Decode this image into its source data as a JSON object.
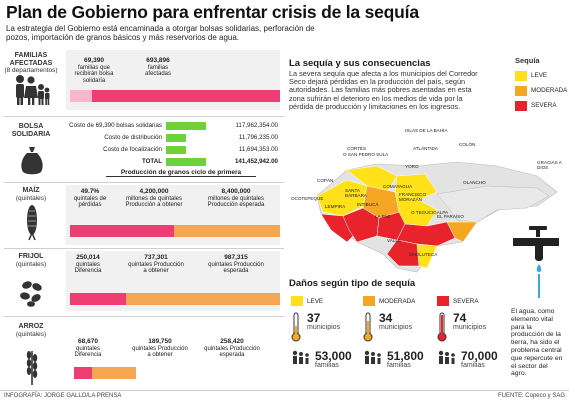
{
  "header": {
    "title": "Plan de Gobierno para enfrentar crisis de la sequía",
    "subtitle": "La estrategia del Gobierno está encaminada a otorgar bolsas solidarias, perforación de pozos, importación de granos básicos y más reservorios de agua."
  },
  "families": {
    "label": "FAMILIAS AFECTADAS",
    "sublabel": "(8 departamentos)",
    "num1": "69,390",
    "num1_text": "familias que recibirán bolsa solidaria",
    "num2": "693,896",
    "num2_text": "familias afectadas"
  },
  "bag": {
    "label": "BOLSA SOLIDARIA",
    "rows": [
      {
        "label": "Costo de 69,390 bolsas solidarias",
        "value": "117,962,354.00"
      },
      {
        "label": "Costo de distribución",
        "value": "11,796,235.00"
      },
      {
        "label": "Costo de focalización",
        "value": "11,694,353.00"
      },
      {
        "label": "TOTAL",
        "value": "141,452,942.00"
      }
    ]
  },
  "production_header": "Producción de granos ciclo de primera",
  "maiz": {
    "label": "MAÍZ",
    "unit": "(quintales)",
    "v1": "49.7%",
    "t1": "quintales de pérdidas",
    "v2": "4,200,000",
    "t2": "millones de quintales Producción a obtener",
    "v3": "8,400,000",
    "t3": "millones de quintales Producción esperada"
  },
  "frijol": {
    "label": "FRIJOL",
    "unit": "(quintales)",
    "v1": "250,014",
    "t1": "quintales Diferencia",
    "v2": "737,301",
    "t2": "quintales Producción a obtener",
    "v3": "987,315",
    "t3": "quintales Producción esperada"
  },
  "arroz": {
    "label": "ARROZ",
    "unit": "(quintales)",
    "v1": "68,670",
    "t1": "quintales Diferencia",
    "v2": "189,750",
    "t2": "quintales Producción a obtener",
    "v3": "258,420",
    "t3": "quintales Producción esperada"
  },
  "drought": {
    "title": "La sequía y sus consecuencias",
    "text": "La severa sequía que afecta a los municipios del Corredor Seco dejará pérdidas en la producción del país, según autoridades. Las familias más pobres asentadas en esta zona sufrirán el deterioro en los medios de vida por la pérdida de producción y limitaciones en los ingresos."
  },
  "legend": {
    "title": "Sequía",
    "items": [
      {
        "label": "LEVE",
        "color": "#ffe11a"
      },
      {
        "label": "MODERADA",
        "color": "#f5a623"
      },
      {
        "label": "SEVERA",
        "color": "#e8232b"
      }
    ]
  },
  "map_labels": {
    "islas": "ISLAS DE LA BAHÍA",
    "gracias": "GRACIAS A DIOS",
    "atlantida": "ATLÁNTIDA",
    "colon": "COLÓN",
    "cortes": "CORTÉS",
    "sps": "O SAN PEDRO SULA",
    "yoro": "YORO",
    "olancho": "OLANCHO",
    "copan": "COPÁN",
    "santabarbara": "SANTA BÁRBARA",
    "comayagua": "COMAYAGUA",
    "ocotepeque": "OCOTEPEQUE",
    "lempira": "LEMPIRA",
    "intibuca": "INTIBUCÁ",
    "fmorazan": "FRANCISCO MORAZÁN",
    "lapaz": "LA PAZ",
    "tegucigalpa": "O TEGUCIGALPA",
    "elparaiso": "EL PARAÍSO",
    "valle": "VALLE",
    "choluteca": "CHOLUTECA"
  },
  "damage": {
    "title": "Daños según tipo de sequía",
    "cols": [
      {
        "label": "LEVE",
        "color": "#ffe11a",
        "municipios": "37",
        "mun_label": "municipios",
        "familias": "53,000",
        "fam_label": "familias"
      },
      {
        "label": "MODERADA",
        "color": "#f5a623",
        "municipios": "34",
        "mun_label": "municipios",
        "familias": "51,800",
        "fam_label": "familias"
      },
      {
        "label": "SEVERA",
        "color": "#e8232b",
        "municipios": "74",
        "mun_label": "municipios",
        "familias": "70,000",
        "fam_label": "familias"
      }
    ]
  },
  "water_text": "El agua, como elemento vital para la producción de la tierra, ha sido el problema central que repercute en el sector del agro.",
  "footer": {
    "credit": "INFOGRAFÍA: JORGE GALLO/LA PRENSA",
    "source": "FUENTE: Copeco y SAG"
  }
}
